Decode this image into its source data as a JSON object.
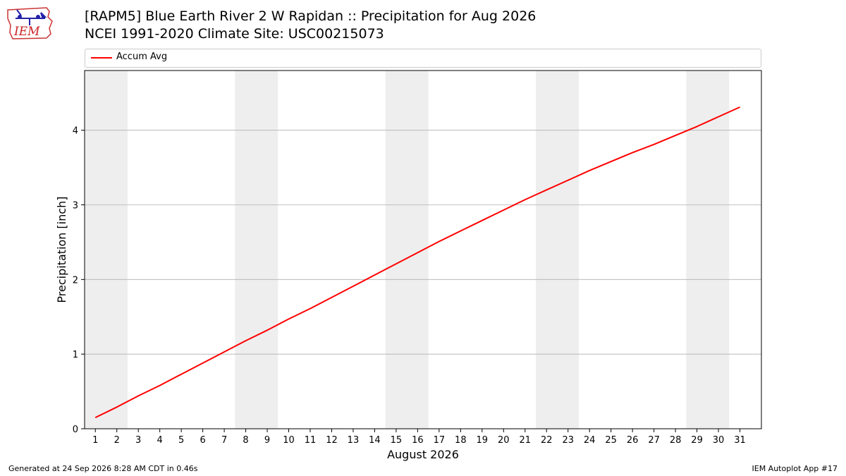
{
  "logo_text": "IEM",
  "title": "[RAPM5] Blue Earth River 2 W Rapidan :: Precipitation for Aug 2026",
  "subtitle": "NCEI 1991-2020 Climate Site: USC00215073",
  "footer_left": "Generated at 24 Sep 2026 8:28 AM CDT in 0.46s",
  "footer_right": "IEM Autoplot App #17",
  "colors": {
    "series": "#ff0000",
    "weekend_band": "#eeeeee",
    "grid": "#b0b0b0"
  },
  "chart_data": {
    "type": "line",
    "xlabel": "August 2026",
    "ylabel": "Precipitation [inch]",
    "xlim": [
      0.5,
      32
    ],
    "ylim": [
      0,
      4.8
    ],
    "yticks": [
      0,
      1,
      2,
      3,
      4
    ],
    "grid": "horizontal",
    "legend_position": "top",
    "weekend_bands": [
      [
        1,
        2
      ],
      [
        8,
        9
      ],
      [
        15,
        16
      ],
      [
        22,
        23
      ],
      [
        29,
        30
      ]
    ],
    "series": [
      {
        "name": "Accum Avg",
        "color": "#ff0000",
        "x": [
          1,
          2,
          3,
          4,
          5,
          6,
          7,
          8,
          9,
          10,
          11,
          12,
          13,
          14,
          15,
          16,
          17,
          18,
          19,
          20,
          21,
          22,
          23,
          24,
          25,
          26,
          27,
          28,
          29,
          30,
          31
        ],
        "values": [
          0.15,
          0.29,
          0.44,
          0.58,
          0.73,
          0.88,
          1.03,
          1.18,
          1.32,
          1.47,
          1.61,
          1.76,
          1.91,
          2.06,
          2.21,
          2.36,
          2.51,
          2.65,
          2.79,
          2.93,
          3.07,
          3.2,
          3.33,
          3.46,
          3.58,
          3.7,
          3.81,
          3.93,
          4.05,
          4.18,
          4.31
        ]
      }
    ]
  }
}
